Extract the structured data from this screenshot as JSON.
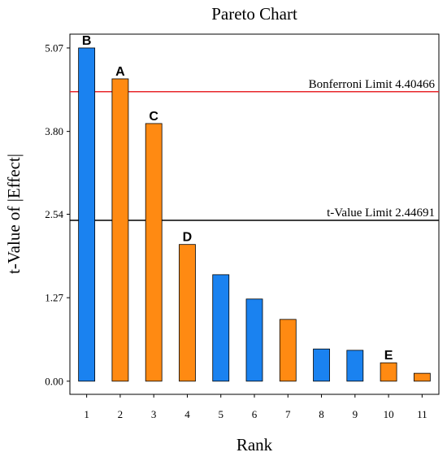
{
  "chart_data": {
    "type": "bar",
    "title": "Pareto Chart",
    "xlabel": "Rank",
    "ylabel": "t-Value of |Effect|",
    "x_ticks": [
      "1",
      "2",
      "3",
      "4",
      "5",
      "6",
      "7",
      "8",
      "9",
      "10",
      "11"
    ],
    "y_ticks": [
      "0.00",
      "1.27",
      "2.54",
      "3.80",
      "5.07"
    ],
    "ylim": [
      -0.2,
      5.28
    ],
    "bars": [
      {
        "rank": 1,
        "value": 5.07,
        "label": "B",
        "sign": "positive"
      },
      {
        "rank": 2,
        "value": 4.6,
        "label": "A",
        "sign": "negative"
      },
      {
        "rank": 3,
        "value": 3.92,
        "label": "C",
        "sign": "negative"
      },
      {
        "rank": 4,
        "value": 2.08,
        "label": "D",
        "sign": "negative"
      },
      {
        "rank": 5,
        "value": 1.62,
        "label": "",
        "sign": "positive"
      },
      {
        "rank": 6,
        "value": 1.25,
        "label": "",
        "sign": "positive"
      },
      {
        "rank": 7,
        "value": 0.94,
        "label": "",
        "sign": "negative"
      },
      {
        "rank": 8,
        "value": 0.49,
        "label": "",
        "sign": "positive"
      },
      {
        "rank": 9,
        "value": 0.47,
        "label": "",
        "sign": "positive"
      },
      {
        "rank": 10,
        "value": 0.28,
        "label": "E",
        "sign": "negative"
      },
      {
        "rank": 11,
        "value": 0.12,
        "label": "",
        "sign": "negative"
      }
    ],
    "limits": [
      {
        "label": "Bonferroni Limit 4.40466",
        "value": 4.40466,
        "color": "#e8262b"
      },
      {
        "label": "t-Value Limit 2.44691",
        "value": 2.44691,
        "color": "#000000"
      }
    ],
    "colors": {
      "positive": "#1a82f0",
      "negative": "#ff8a12"
    },
    "grid": false,
    "legend": "none"
  }
}
